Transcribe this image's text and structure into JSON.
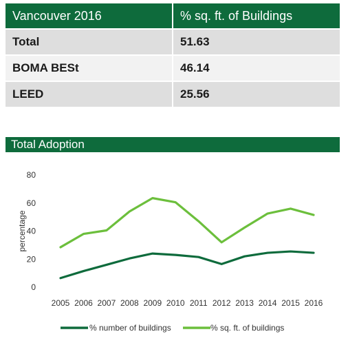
{
  "table": {
    "headers": [
      "Vancouver 2016",
      "% sq. ft. of Buildings"
    ],
    "rows": [
      {
        "label": "Total",
        "value": "51.63"
      },
      {
        "label": "BOMA BESt",
        "value": "46.14"
      },
      {
        "label": "LEED",
        "value": "25.56"
      }
    ]
  },
  "chart_title": "Total Adoption",
  "colors": {
    "banner": "#0e6b3c",
    "series_dark": "#0e6b3c",
    "series_light": "#6cbf3c"
  },
  "chart_data": {
    "type": "line",
    "title": "Total Adoption",
    "xlabel": "",
    "ylabel": "percentage",
    "x": [
      "2005",
      "2006",
      "2007",
      "2008",
      "2009",
      "2010",
      "2011",
      "2012",
      "2013",
      "2014",
      "2015",
      "2016"
    ],
    "yticks": [
      "0",
      "20",
      "40",
      "60",
      "80"
    ],
    "ylim": [
      0,
      80
    ],
    "grid": false,
    "legend": "bottom",
    "series": [
      {
        "name": "% number of buildings",
        "values": [
          6.5,
          11.5,
          16,
          20.5,
          24,
          23,
          21.5,
          16.5,
          22,
          24.5,
          25.5,
          24.5
        ]
      },
      {
        "name": "% sq. ft. of buildings",
        "values": [
          28.5,
          38,
          40.5,
          54,
          63.5,
          60.5,
          47,
          32,
          42.5,
          52.5,
          56,
          51.5
        ]
      }
    ]
  }
}
